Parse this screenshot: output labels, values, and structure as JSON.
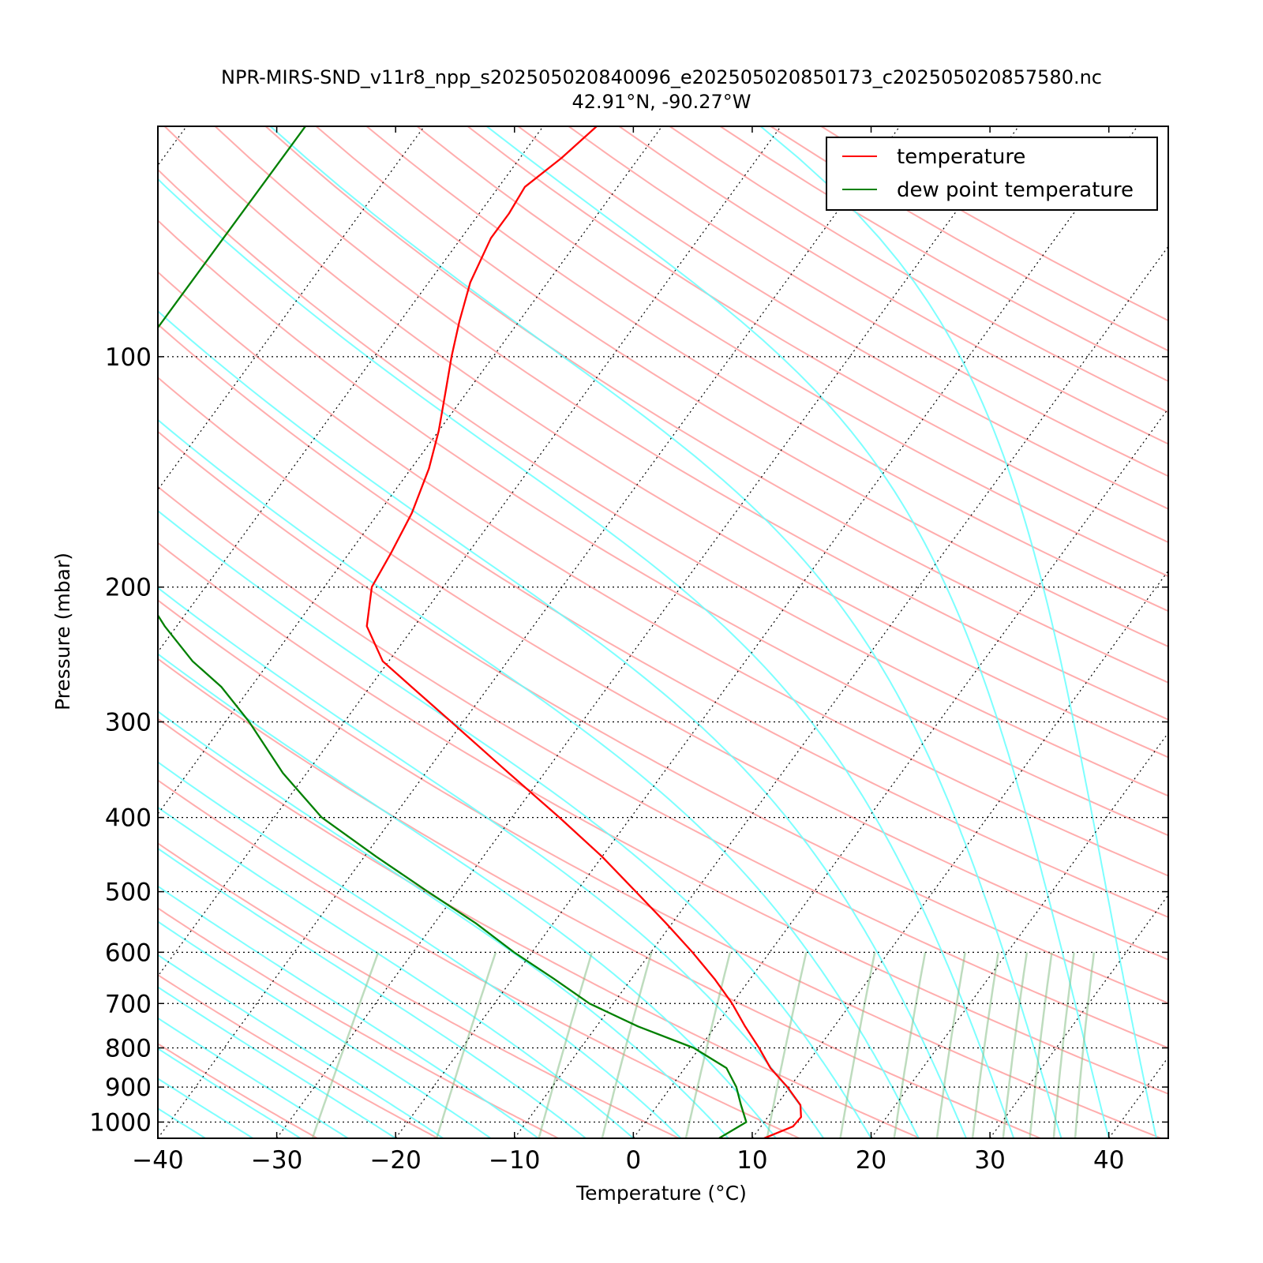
{
  "chart_data": {
    "type": "line",
    "chart_kind": "skew-T log-P diagram",
    "title": "NPR-MIRS-SND_v11r8_npp_s202505020840096_e202505020850173_c202505020857580.nc",
    "subtitle": "42.91°N, -90.27°W",
    "xlabel": "Temperature (°C)",
    "ylabel": "Pressure (mbar)",
    "xlim": [
      -40,
      45
    ],
    "ylim": [
      1050,
      50
    ],
    "y_scale": "log",
    "x_ticks": [
      "−40",
      "−30",
      "−20",
      "−10",
      "0",
      "10",
      "20",
      "30",
      "40"
    ],
    "x_tick_values": [
      -40,
      -30,
      -20,
      -10,
      0,
      10,
      20,
      30,
      40
    ],
    "y_ticks": [
      "100",
      "200",
      "300",
      "400",
      "500",
      "600",
      "700",
      "800",
      "900",
      "1000"
    ],
    "y_tick_values": [
      100,
      200,
      300,
      400,
      500,
      600,
      700,
      800,
      900,
      1000
    ],
    "grid": true,
    "legend": {
      "placement": "top-right"
    },
    "series": [
      {
        "name": "temperature",
        "color": "#ff0000",
        "points": [
          {
            "p": 1050,
            "t": 11.0
          },
          {
            "p": 1013,
            "t": 12.7
          },
          {
            "p": 985,
            "t": 12.8
          },
          {
            "p": 950,
            "t": 12.0
          },
          {
            "p": 900,
            "t": 9.8
          },
          {
            "p": 850,
            "t": 7.2
          },
          {
            "p": 800,
            "t": 5.0
          },
          {
            "p": 750,
            "t": 2.5
          },
          {
            "p": 700,
            "t": 0.0
          },
          {
            "p": 650,
            "t": -3.0
          },
          {
            "p": 600,
            "t": -6.5
          },
          {
            "p": 550,
            "t": -10.5
          },
          {
            "p": 500,
            "t": -15.0
          },
          {
            "p": 450,
            "t": -20.0
          },
          {
            "p": 400,
            "t": -26.0
          },
          {
            "p": 350,
            "t": -33.0
          },
          {
            "p": 300,
            "t": -41.0
          },
          {
            "p": 270,
            "t": -46.5
          },
          {
            "p": 250,
            "t": -50.5
          },
          {
            "p": 225,
            "t": -54.0
          },
          {
            "p": 200,
            "t": -56.0
          },
          {
            "p": 180,
            "t": -56.5
          },
          {
            "p": 160,
            "t": -57.2
          },
          {
            "p": 140,
            "t": -58.5
          },
          {
            "p": 125,
            "t": -60.0
          },
          {
            "p": 110,
            "t": -62.0
          },
          {
            "p": 100,
            "t": -63.5
          },
          {
            "p": 90,
            "t": -65.0
          },
          {
            "p": 80,
            "t": -66.5
          },
          {
            "p": 70,
            "t": -67.5
          },
          {
            "p": 65,
            "t": -67.5
          },
          {
            "p": 60,
            "t": -67.8
          },
          {
            "p": 55,
            "t": -66.5
          },
          {
            "p": 50,
            "t": -65.5
          }
        ]
      },
      {
        "name": "dew point temperature",
        "color": "#008000",
        "points": [
          {
            "p": 1050,
            "t": 7.2
          },
          {
            "p": 1000,
            "t": 8.5
          },
          {
            "p": 950,
            "t": 7.0
          },
          {
            "p": 900,
            "t": 5.5
          },
          {
            "p": 850,
            "t": 3.5
          },
          {
            "p": 800,
            "t": -0.5
          },
          {
            "p": 750,
            "t": -6.5
          },
          {
            "p": 700,
            "t": -12.0
          },
          {
            "p": 650,
            "t": -16.5
          },
          {
            "p": 600,
            "t": -21.5
          },
          {
            "p": 550,
            "t": -26.5
          },
          {
            "p": 500,
            "t": -32.5
          },
          {
            "p": 450,
            "t": -39.0
          },
          {
            "p": 400,
            "t": -46.0
          },
          {
            "p": 350,
            "t": -52.0
          },
          {
            "p": 300,
            "t": -58.0
          },
          {
            "p": 270,
            "t": -62.5
          },
          {
            "p": 250,
            "t": -66.5
          },
          {
            "p": 225,
            "t": -71.0
          },
          {
            "p": 200,
            "t": -75.5
          },
          {
            "p": 180,
            "t": -79.5
          },
          {
            "p": 160,
            "t": -83.5
          },
          {
            "p": 140,
            "t": -87.5
          },
          {
            "p": 125,
            "t": -89.5
          },
          {
            "p": 110,
            "t": -90.0
          },
          {
            "p": 100,
            "t": -90.0
          },
          {
            "p": 90,
            "t": -90.0
          },
          {
            "p": 80,
            "t": -90.0
          },
          {
            "p": 70,
            "t": -90.0
          },
          {
            "p": 60,
            "t": -90.0
          },
          {
            "p": 50,
            "t": -90.0
          }
        ]
      }
    ],
    "background_lines": {
      "dry_adiabat_color": "#ff9999",
      "moist_adiabat_color": "#66ffff",
      "mixing_ratio_color": "#88c088",
      "isotherm_color": "#000000"
    }
  }
}
